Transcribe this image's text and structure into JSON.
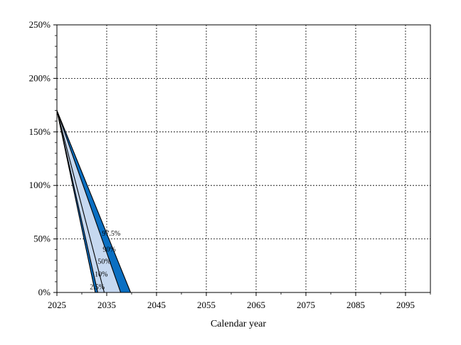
{
  "chart_data": {
    "type": "area",
    "title": "",
    "xlabel": "Calendar year",
    "ylabel": "",
    "xlim": [
      2025,
      2100
    ],
    "ylim": [
      0,
      250
    ],
    "x_ticks": [
      2025,
      2035,
      2045,
      2055,
      2065,
      2075,
      2085,
      2095
    ],
    "x_tick_labels": [
      "2025",
      "2035",
      "2045",
      "2055",
      "2065",
      "2075",
      "2085",
      "2095"
    ],
    "y_ticks": [
      0,
      50,
      100,
      150,
      200,
      250
    ],
    "y_tick_labels": [
      "0%",
      "50%",
      "100%",
      "150%",
      "200%",
      "250%"
    ],
    "grid": true,
    "legend": "none",
    "series": [
      {
        "name": "97.5%",
        "x": [
          2025,
          2039.8
        ],
        "y": [
          170,
          0
        ]
      },
      {
        "name": "90%",
        "x": [
          2025,
          2037.8
        ],
        "y": [
          170,
          0
        ]
      },
      {
        "name": "50%",
        "x": [
          2025,
          2034.5
        ],
        "y": [
          170,
          0
        ]
      },
      {
        "name": "10%",
        "x": [
          2025,
          2033.2
        ],
        "y": [
          170,
          0
        ]
      },
      {
        "name": "2.5%",
        "x": [
          2025,
          2032.7
        ],
        "y": [
          170,
          0
        ]
      }
    ],
    "band_colors": [
      "#0a6fc2",
      "#c6d8f0",
      "#c6d8f0",
      "#0a6fc2"
    ],
    "band_label_points": [
      {
        "series": 0,
        "x": 2035.9,
        "y": 55
      },
      {
        "series": 1,
        "x": 2035.5,
        "y": 40
      },
      {
        "series": 2,
        "x": 2034.5,
        "y": 29
      },
      {
        "series": 3,
        "x": 2033.9,
        "y": 17
      },
      {
        "series": 4,
        "x": 2033.1,
        "y": 5
      }
    ]
  }
}
